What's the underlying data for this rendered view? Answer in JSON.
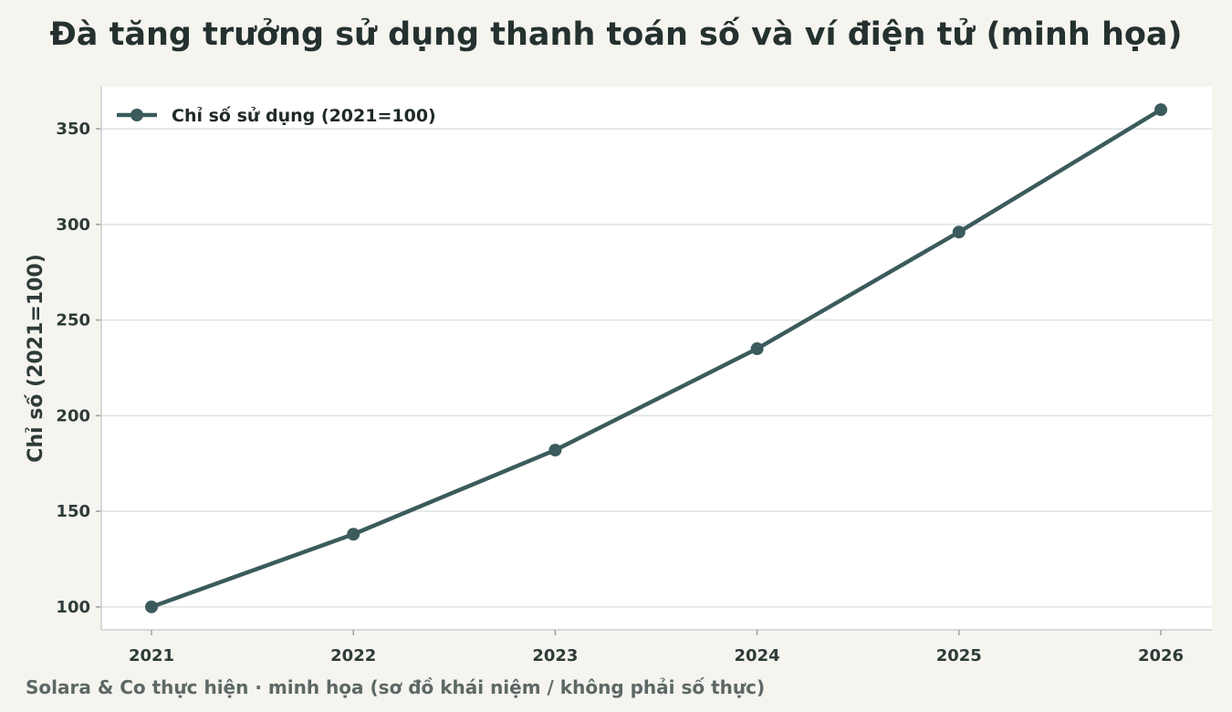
{
  "title": "Đà tăng trưởng sử dụng thanh toán số và ví điện tử (minh họa)",
  "footer": "Solara & Co thực hiện · minh họa (sơ đồ khái niệm / không phải số thực)",
  "colors": {
    "background": "#f5f4ef",
    "plot_background": "#ffffff",
    "series": "#3b5b5c",
    "grid": "#dde3e2",
    "text": "#24312f",
    "footer": "#5d6866"
  },
  "chart_data": {
    "type": "line",
    "x": [
      "2021",
      "2022",
      "2023",
      "2024",
      "2025",
      "2026"
    ],
    "series": [
      {
        "name": "Chỉ số sử dụng (2021=100)",
        "values": [
          100,
          138,
          182,
          235,
          296,
          360
        ]
      }
    ],
    "xlabel": "",
    "ylabel": "Chỉ số (2021=100)",
    "ylim": [
      88,
      372
    ],
    "yticks": [
      100,
      150,
      200,
      250,
      300,
      350
    ],
    "grid": "horizontal",
    "legend_position": "top-left",
    "markers": true
  }
}
